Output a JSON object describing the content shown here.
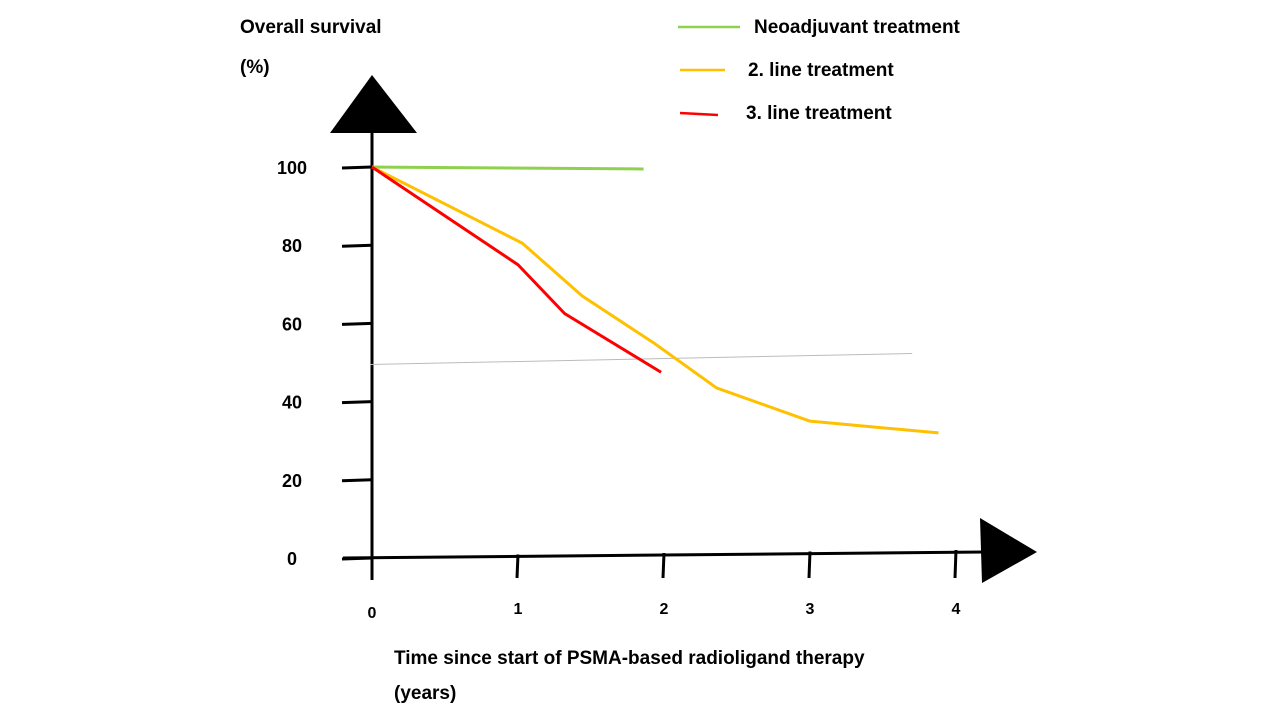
{
  "chart_data": {
    "type": "line",
    "ylabel_line1": "Overall survival",
    "ylabel_line2": "(%)",
    "xlabel_line1": "Time since start of PSMA-based radioligand therapy",
    "xlabel_line2": "(years)",
    "xlim": [
      0,
      4.4
    ],
    "ylim": [
      0,
      100
    ],
    "x_ticks": [
      "0",
      "1",
      "2",
      "3",
      "4"
    ],
    "y_ticks": [
      "0",
      "20",
      "40",
      "60",
      "80",
      "100"
    ],
    "grid": false,
    "legend_placement": "top-right",
    "reference_line": {
      "y": 50,
      "x_range": [
        0,
        3.7
      ],
      "color": "#bbbbbb"
    },
    "series": [
      {
        "name": "Neoadjuvant treatment",
        "color": "#8fd14f",
        "points": [
          [
            0,
            100
          ],
          [
            1.86,
            99.5
          ]
        ]
      },
      {
        "name": "2. line treatment",
        "color": "#ffc000",
        "points": [
          [
            0,
            100
          ],
          [
            1.03,
            80.5
          ],
          [
            1.44,
            67
          ],
          [
            1.93,
            55
          ],
          [
            2.36,
            43.5
          ],
          [
            3.0,
            35
          ],
          [
            3.88,
            32
          ]
        ]
      },
      {
        "name": "3. line treatment",
        "color": "#ff0000",
        "points": [
          [
            0,
            100
          ],
          [
            1.0,
            75
          ],
          [
            1.32,
            62.5
          ],
          [
            1.98,
            47.5
          ]
        ]
      }
    ]
  }
}
